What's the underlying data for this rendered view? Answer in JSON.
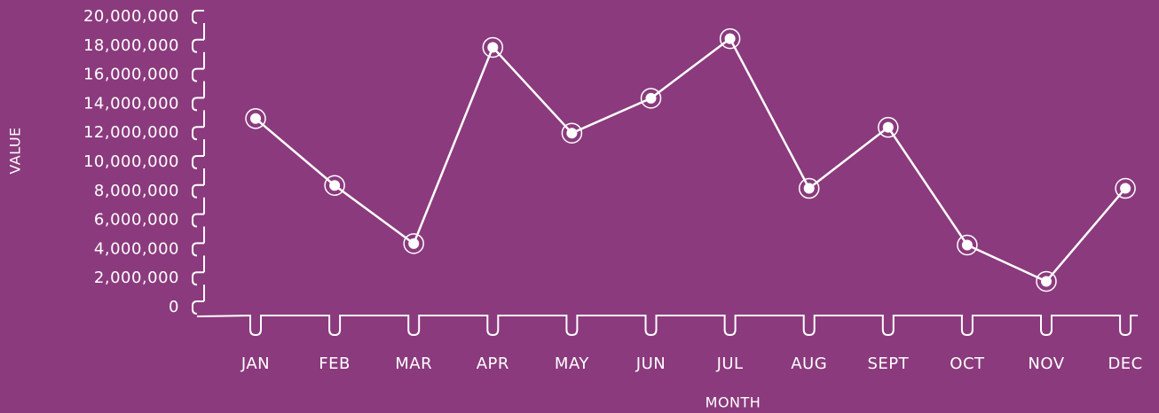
{
  "chart_data": {
    "type": "line",
    "x_label": "MONTH",
    "y_label": "VALUE",
    "categories": [
      "JAN",
      "FEB",
      "MAR",
      "APR",
      "MAY",
      "JUN",
      "JUL",
      "AUG",
      "SEPT",
      "OCT",
      "NOV",
      "DEC"
    ],
    "series": [
      {
        "name": "VALUE",
        "color": "#ffffff",
        "values": [
          13000000,
          8400000,
          4400000,
          17900000,
          12000000,
          14400000,
          18500000,
          8200000,
          12400000,
          4300000,
          1800000,
          8200000
        ]
      }
    ],
    "ylim": [
      0,
      20000000
    ],
    "yticks": [
      0,
      {
        "value": 2000000,
        "label": "2,000,000"
      },
      {
        "value": 4000000,
        "label": "4,000,000"
      },
      {
        "value": 6000000,
        "label": "6,000,000"
      },
      {
        "value": 8000000,
        "label": "8,000,000"
      },
      {
        "value": 10000000,
        "label": "10,000,000"
      },
      {
        "value": 12000000,
        "label": "12,000,000"
      },
      {
        "value": 14000000,
        "label": "14,000,000"
      },
      {
        "value": 16000000,
        "label": "16,000,000"
      },
      {
        "value": 18000000,
        "label": "18,000,000"
      },
      {
        "value": 20000000,
        "label": "20,000,000"
      }
    ],
    "grid": false
  }
}
